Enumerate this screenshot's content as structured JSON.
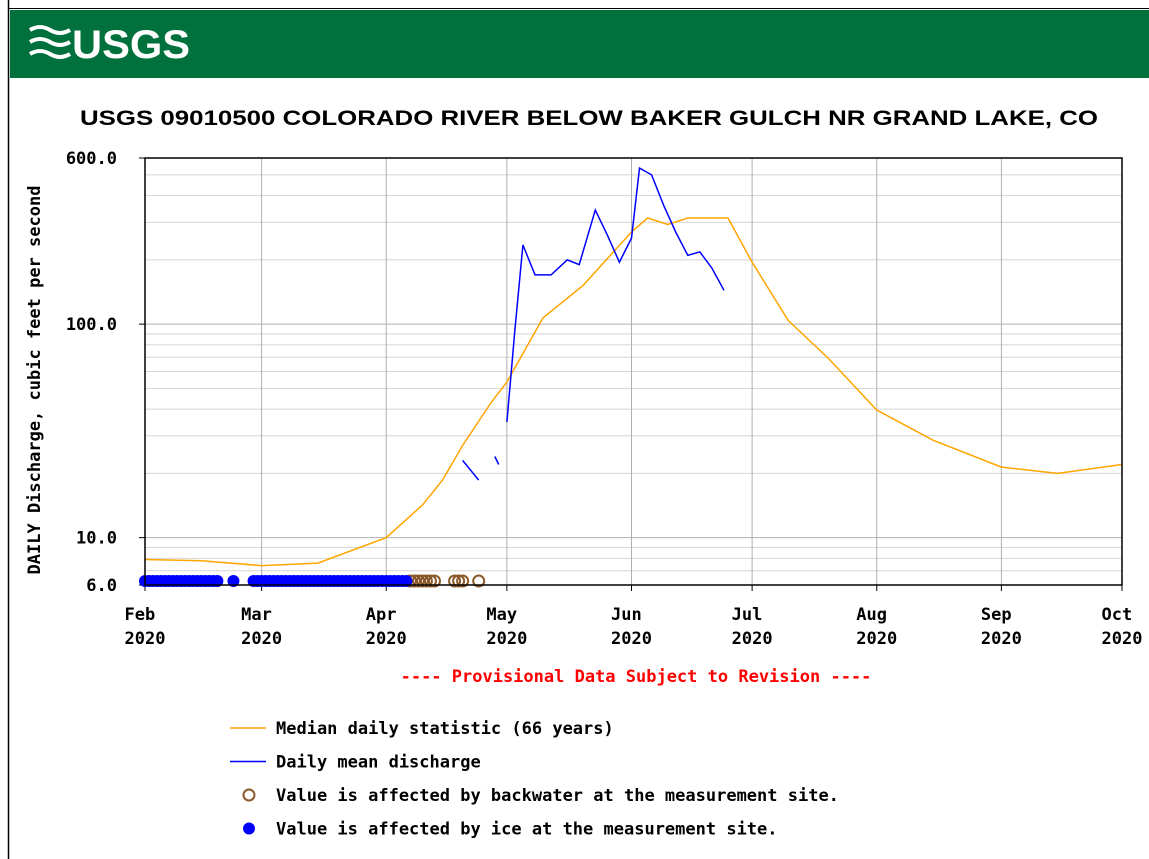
{
  "logo_text": "USGS",
  "chart_data": {
    "type": "line",
    "title": "USGS 09010500 COLORADO RIVER BELOW BAKER GULCH NR GRAND LAKE, CO",
    "y_label": "DAILY Discharge, cubic feet per second",
    "annotation": "---- Provisional Data Subject to Revision ----",
    "log_y": true,
    "grid": true,
    "xlim": [
      "2020-02-01",
      "2020-10-01"
    ],
    "xticks": [
      {
        "value": "2020-02-01",
        "label": "Feb 2020"
      },
      {
        "value": "2020-03-01",
        "label": "Mar 2020"
      },
      {
        "value": "2020-04-01",
        "label": "Apr 2020"
      },
      {
        "value": "2020-05-01",
        "label": "May 2020"
      },
      {
        "value": "2020-06-01",
        "label": "Jun 2020"
      },
      {
        "value": "2020-07-01",
        "label": "Jul 2020"
      },
      {
        "value": "2020-08-01",
        "label": "Aug 2020"
      },
      {
        "value": "2020-09-01",
        "label": "Sep 2020"
      },
      {
        "value": "2020-10-01",
        "label": "Oct 2020"
      }
    ],
    "ylim": [
      6,
      600
    ],
    "yticks": [
      {
        "value": 6,
        "label": "6.0"
      },
      {
        "value": 10,
        "label": "10.0"
      },
      {
        "value": 100,
        "label": "100.0"
      },
      {
        "value": 600,
        "label": "600.0"
      }
    ],
    "y_minor_grid": [
      7,
      8,
      9,
      20,
      30,
      40,
      50,
      60,
      70,
      80,
      90,
      200,
      300,
      400,
      500
    ],
    "series": [
      {
        "name": "Median daily statistic (66 years)",
        "color": "#ffa500",
        "x": [
          "2020-02-01",
          "2020-02-15",
          "2020-03-01",
          "2020-03-15",
          "2020-04-01",
          "2020-04-10",
          "2020-04-15",
          "2020-04-20",
          "2020-04-27",
          "2020-05-01",
          "2020-05-10",
          "2020-05-20",
          "2020-06-01",
          "2020-06-05",
          "2020-06-10",
          "2020-06-15",
          "2020-06-25",
          "2020-07-01",
          "2020-07-10",
          "2020-07-20",
          "2020-08-01",
          "2020-08-15",
          "2020-09-01",
          "2020-09-15",
          "2020-10-01"
        ],
        "values": [
          7.9,
          7.8,
          7.4,
          7.6,
          10,
          14.2,
          18.6,
          27,
          42.7,
          53.6,
          107,
          152,
          270,
          314,
          293,
          314,
          314,
          195,
          104,
          69,
          39.6,
          28.6,
          21.4,
          20,
          22
        ]
      },
      {
        "name": "Daily mean discharge",
        "color": "#0000ff",
        "x": [
          "2020-04-20",
          "2020-04-24",
          "2020-04-26",
          "2020-04-28",
          "2020-04-29",
          "2020-04-30",
          "2020-05-01",
          "2020-05-03",
          "2020-05-05",
          "2020-05-08",
          "2020-05-12",
          "2020-05-16",
          "2020-05-19",
          "2020-05-23",
          "2020-05-26",
          "2020-05-29",
          "2020-06-01",
          "2020-06-03",
          "2020-06-06",
          "2020-06-09",
          "2020-06-12",
          "2020-06-15",
          "2020-06-18",
          "2020-06-21",
          "2020-06-24"
        ],
        "values": [
          23,
          18.6,
          null,
          24,
          22,
          null,
          34.8,
          94,
          235,
          170,
          170,
          200,
          190,
          342,
          261,
          195,
          253,
          538,
          500,
          360,
          270,
          210,
          218,
          183,
          144
        ]
      }
    ],
    "markers": [
      {
        "name": "Value is affected by backwater at the measurement site.",
        "color": "#8b5a2b",
        "shape": "open-circle",
        "x": [
          "2020-04-07",
          "2020-04-08",
          "2020-04-09",
          "2020-04-10",
          "2020-04-11",
          "2020-04-12",
          "2020-04-13",
          "2020-04-18",
          "2020-04-19",
          "2020-04-20",
          "2020-04-24"
        ]
      },
      {
        "name": "Value is affected by ice at the measurement site.",
        "color": "#0000ff",
        "shape": "dot",
        "x": [
          "2020-02-01",
          "2020-02-02",
          "2020-02-03",
          "2020-02-04",
          "2020-02-05",
          "2020-02-06",
          "2020-02-07",
          "2020-02-08",
          "2020-02-09",
          "2020-02-10",
          "2020-02-11",
          "2020-02-12",
          "2020-02-13",
          "2020-02-14",
          "2020-02-15",
          "2020-02-16",
          "2020-02-17",
          "2020-02-18",
          "2020-02-19",
          "2020-02-23",
          "2020-02-28",
          "2020-02-29",
          "2020-03-01",
          "2020-03-02",
          "2020-03-03",
          "2020-03-04",
          "2020-03-05",
          "2020-03-06",
          "2020-03-07",
          "2020-03-08",
          "2020-03-09",
          "2020-03-10",
          "2020-03-11",
          "2020-03-12",
          "2020-03-13",
          "2020-03-14",
          "2020-03-15",
          "2020-03-16",
          "2020-03-17",
          "2020-03-18",
          "2020-03-19",
          "2020-03-20",
          "2020-03-21",
          "2020-03-22",
          "2020-03-23",
          "2020-03-24",
          "2020-03-25",
          "2020-03-26",
          "2020-03-27",
          "2020-03-28",
          "2020-03-29",
          "2020-03-30",
          "2020-03-31",
          "2020-04-01",
          "2020-04-02",
          "2020-04-03",
          "2020-04-04",
          "2020-04-05",
          "2020-04-06"
        ]
      }
    ]
  }
}
